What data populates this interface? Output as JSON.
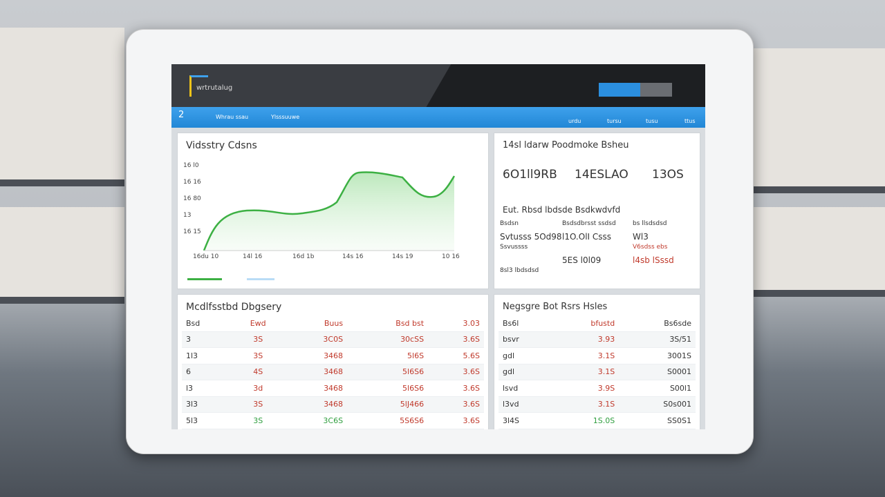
{
  "header": {
    "logo": "wrtrutalug",
    "nav": [
      "2",
      "Whrau ssau",
      "Ylsssuuwe"
    ],
    "icons": [
      "urdu",
      "tursu",
      "tusu",
      "ttus"
    ]
  },
  "panels": {
    "trend": {
      "title": "Vidsstry Cdsns",
      "y_labels": [
        "16 l0",
        "16 16",
        "16 80",
        "13",
        "16 15"
      ],
      "x_labels": [
        "16du 10",
        "14l 16",
        "16d 1b",
        "14s 16",
        "14s 19",
        "10 16"
      ]
    },
    "perf": {
      "title": "14sl ldarw Poodmoke Bsheu",
      "metrics": [
        "6O1ll9RB",
        "14ESLAO",
        "13OS"
      ],
      "subtitle": "Eut. Rbsd lbdsde Bsdkwdvfd",
      "rows": [
        [
          "Bsdsn",
          "Bsdsdbrsst ssdsd",
          "bs llsdsdsd"
        ],
        [
          "Svtusss 5Od98",
          "l1O.OlI Csss",
          "Wl3"
        ],
        [
          "Ssvussss",
          "",
          "V6sdss ebs"
        ],
        [
          "",
          "5ES l0l09",
          "l4sb lSssd"
        ],
        [
          "8sl3 lbdsdsd",
          "",
          ""
        ]
      ]
    },
    "delivery": {
      "title": "Mcdlfsstbd Dbgsery",
      "columns": [
        "Bsd",
        "Ewd",
        "Buus",
        "Bsd bst",
        "3.03"
      ],
      "rows": [
        [
          "3",
          "3S",
          "3C0S",
          "30cSS",
          "3.6S"
        ],
        [
          "1l3",
          "3S",
          "3468",
          "5l6S",
          "5.6S"
        ],
        [
          "6",
          "4S",
          "3468",
          "5l6S6",
          "3.6S"
        ],
        [
          "l3",
          "3d",
          "3468",
          "5l6S6",
          "3.6S"
        ],
        [
          "3l3",
          "3S",
          "3468",
          "5lJ466",
          "3.6S"
        ],
        [
          "5l3",
          "3S",
          "3C6S",
          "5S6S6",
          "3.6S"
        ]
      ]
    },
    "orders": {
      "title": "Negsgre Bot Rsrs Hsles",
      "columns": [
        "Bs6l",
        "bfustd",
        "Bs6sde"
      ],
      "rows": [
        [
          "bsvr",
          "3.93",
          "3S/51"
        ],
        [
          "gdl",
          "3.1S",
          "3001S"
        ],
        [
          "gdl",
          "3.1S",
          "S0001"
        ],
        [
          "lsvd",
          "3.9S",
          "S00l1"
        ],
        [
          "l3vd",
          "3.1S",
          "S0s001"
        ],
        [
          "3l4S",
          "1S.0S",
          "SS0S1"
        ]
      ]
    }
  }
}
